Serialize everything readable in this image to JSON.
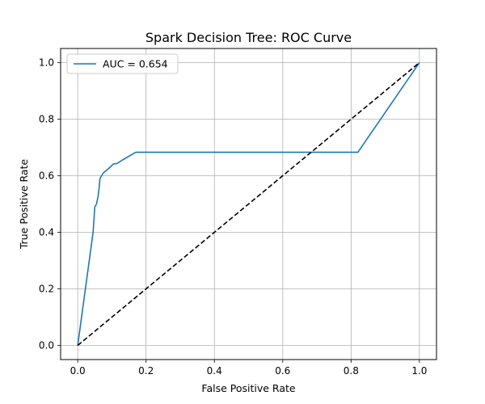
{
  "chart_data": {
    "type": "line",
    "title": "Spark Decision Tree: ROC Curve",
    "xlabel": "False Positive Rate",
    "ylabel": "True Positive Rate",
    "xlim": [
      -0.05,
      1.05
    ],
    "ylim": [
      -0.05,
      1.05
    ],
    "x_ticks": [
      0.0,
      0.2,
      0.4,
      0.6,
      0.8,
      1.0
    ],
    "x_tick_labels": [
      "0.0",
      "0.2",
      "0.4",
      "0.6",
      "0.8",
      "1.0"
    ],
    "y_ticks": [
      0.0,
      0.2,
      0.4,
      0.6,
      0.8,
      1.0
    ],
    "y_tick_labels": [
      "0.0",
      "0.2",
      "0.4",
      "0.6",
      "0.8",
      "1.0"
    ],
    "grid": true,
    "legend_position": "top-left",
    "series": [
      {
        "name": "AUC = 0.654",
        "color": "#1f77b4",
        "style": "solid",
        "x": [
          0.0,
          0.045,
          0.05,
          0.055,
          0.06,
          0.063,
          0.065,
          0.075,
          0.09,
          0.105,
          0.115,
          0.13,
          0.17,
          0.82,
          1.0
        ],
        "y": [
          0.0,
          0.4,
          0.49,
          0.5,
          0.53,
          0.56,
          0.59,
          0.61,
          0.625,
          0.642,
          0.643,
          0.655,
          0.683,
          0.683,
          1.0
        ]
      },
      {
        "name": "",
        "color": "#000000",
        "style": "dashed",
        "x": [
          0.0,
          1.0
        ],
        "y": [
          0.0,
          1.0
        ]
      }
    ]
  }
}
